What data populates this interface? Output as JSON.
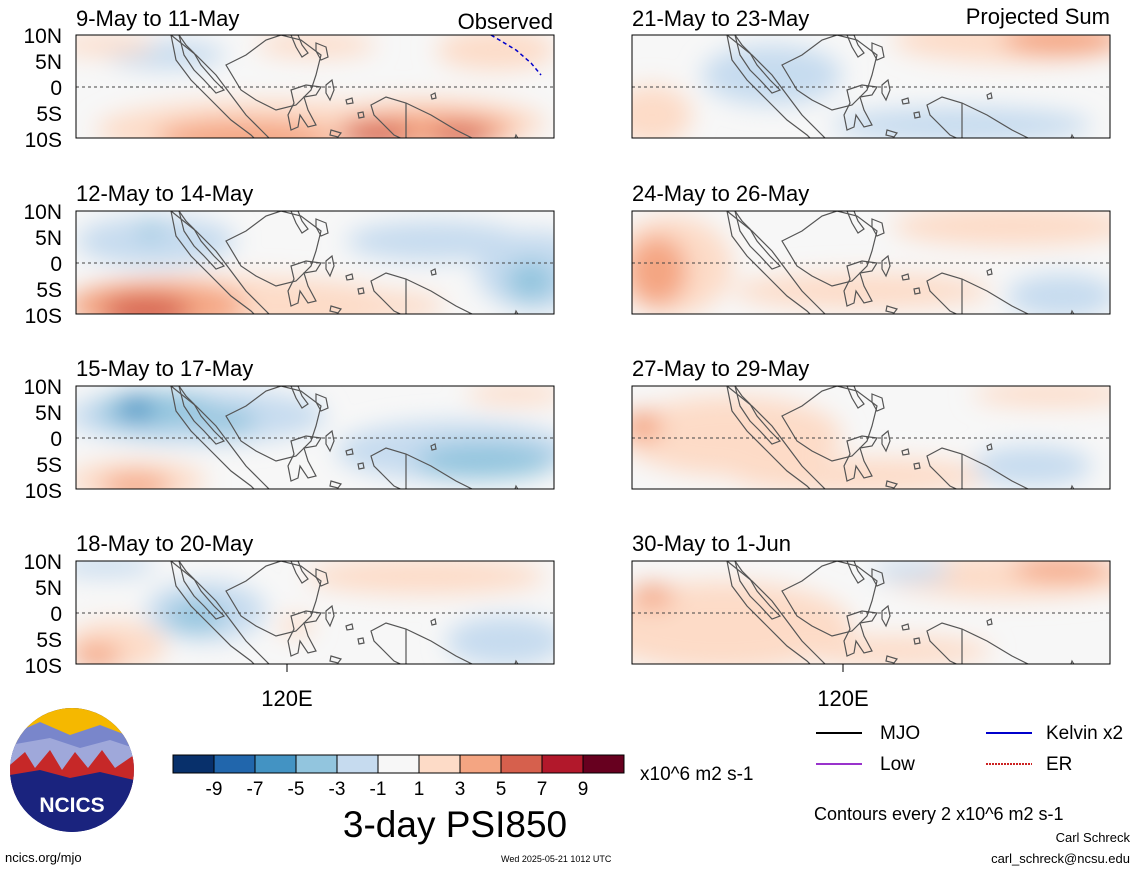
{
  "panels": [
    {
      "title": "9-May to 11-May",
      "tag": "Observed"
    },
    {
      "title": "12-May to 14-May",
      "tag": ""
    },
    {
      "title": "15-May to 17-May",
      "tag": ""
    },
    {
      "title": "18-May to 20-May",
      "tag": ""
    },
    {
      "title": "21-May to 23-May",
      "tag": "Projected Sum"
    },
    {
      "title": "24-May to 26-May",
      "tag": ""
    },
    {
      "title": "27-May to 29-May",
      "tag": ""
    },
    {
      "title": "30-May to 1-Jun",
      "tag": ""
    }
  ],
  "lat_labels": [
    "10N",
    "5N",
    "0",
    "5S",
    "10S"
  ],
  "lon_label": "120E",
  "colorbar": {
    "colors": [
      "#08306b",
      "#2166ac",
      "#4393c3",
      "#92c5de",
      "#c6dbef",
      "#f7f7f7",
      "#fddbc7",
      "#f4a582",
      "#d6604d",
      "#b2182b",
      "#67001f"
    ],
    "ticks": [
      "-9",
      "-7",
      "-5",
      "-3",
      "-1",
      "1",
      "3",
      "5",
      "7",
      "9"
    ],
    "units": "x10^6 m2 s-1"
  },
  "legend": [
    {
      "label": "MJO",
      "color": "#000000"
    },
    {
      "label": "Kelvin x2",
      "color": "#0000cc"
    },
    {
      "label": "Low",
      "color": "#9933cc"
    },
    {
      "label": "ER",
      "color": "#cc2222"
    }
  ],
  "contours_note": "Contours every 2 x10^6 m2 s-1",
  "main_title": "3-day PSI850",
  "logo_text": "NCICS",
  "footer": {
    "url": "ncics.org/mjo",
    "timestamp": "Wed 2025-05-21 1012 UTC",
    "author": "Carl Schreck",
    "email": "carl_schreck@ncsu.edu"
  }
}
